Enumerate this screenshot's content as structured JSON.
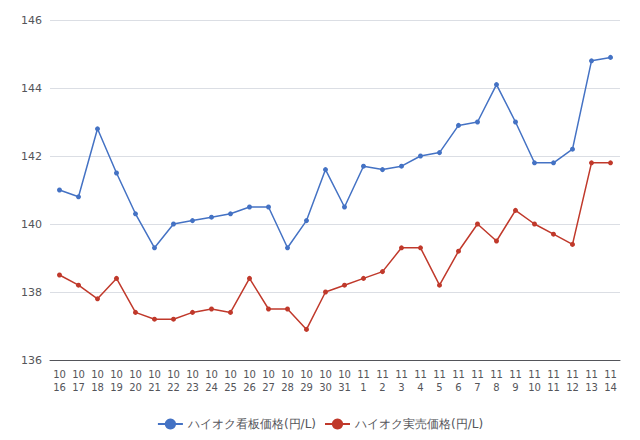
{
  "chart_data": {
    "type": "line",
    "categories": [
      "10\n16",
      "10\n17",
      "10\n18",
      "10\n19",
      "10\n20",
      "10\n21",
      "10\n22",
      "10\n23",
      "10\n24",
      "10\n25",
      "10\n26",
      "10\n27",
      "10\n28",
      "10\n29",
      "10\n30",
      "10\n31",
      "11\n1",
      "11\n2",
      "11\n3",
      "11\n4",
      "11\n5",
      "11\n6",
      "11\n7",
      "11\n8",
      "11\n9",
      "11\n10",
      "11\n11",
      "11\n12",
      "11\n13",
      "11\n14"
    ],
    "series": [
      {
        "name": "ハイオク看板価格(円/L)",
        "color": "#4472C4",
        "marker": "circle",
        "values": [
          141.0,
          140.8,
          142.8,
          141.5,
          140.3,
          139.3,
          140.0,
          140.1,
          140.2,
          140.3,
          140.5,
          140.5,
          139.3,
          140.1,
          141.6,
          140.5,
          141.7,
          141.6,
          141.7,
          142.0,
          142.1,
          142.9,
          143.0,
          144.1,
          143.0,
          141.8,
          141.8,
          142.2,
          144.8,
          144.9
        ]
      },
      {
        "name": "ハイオク実売価格(円/L)",
        "color": "#C0392B",
        "marker": "circle",
        "values": [
          138.5,
          138.2,
          137.8,
          138.4,
          137.4,
          137.2,
          137.2,
          137.4,
          137.5,
          137.4,
          138.4,
          137.5,
          137.5,
          136.9,
          138.0,
          138.2,
          138.4,
          138.6,
          139.3,
          139.3,
          138.2,
          139.2,
          140.0,
          139.5,
          140.4,
          140.0,
          139.7,
          139.4,
          141.8,
          141.8
        ]
      }
    ],
    "ylim": [
      136,
      146
    ],
    "yticks": [
      136,
      138,
      140,
      142,
      144,
      146
    ],
    "grid": true,
    "legend": "bottom"
  }
}
